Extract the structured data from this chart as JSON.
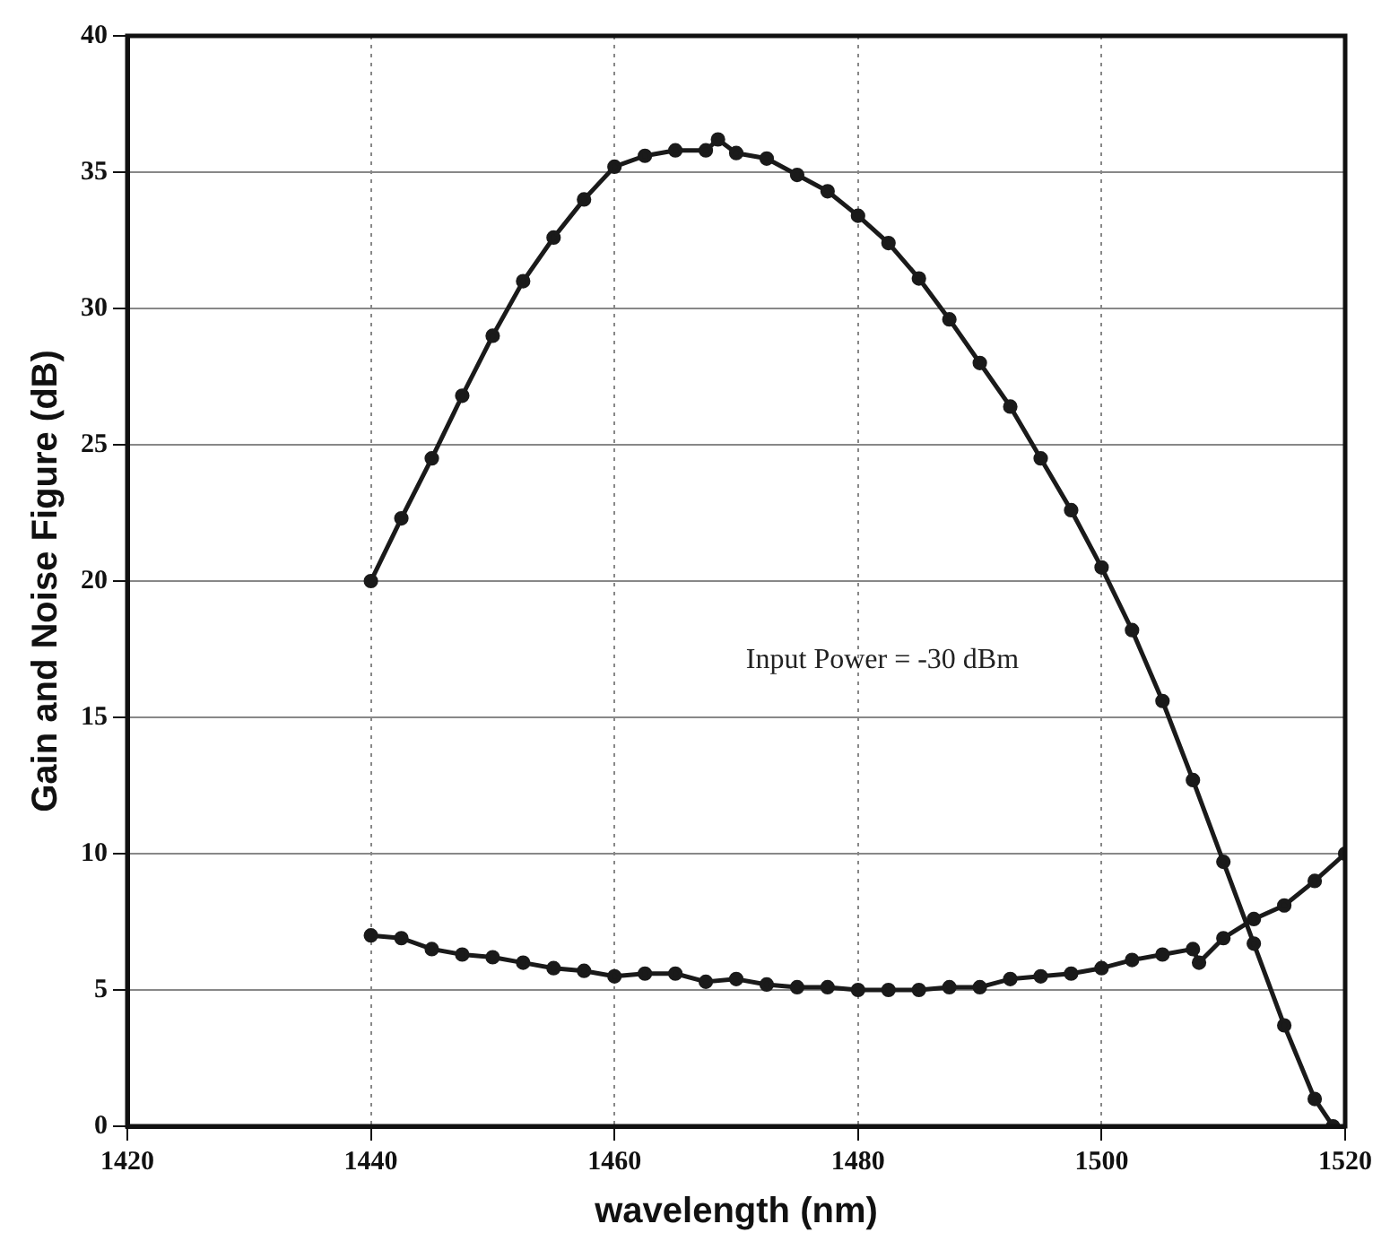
{
  "chart_data": {
    "type": "line",
    "xlabel": "wavelength (nm)",
    "ylabel": "Gain and Noise Figure (dB)",
    "xlim": [
      1420,
      1520
    ],
    "xticks": [
      1420,
      1440,
      1460,
      1480,
      1500,
      1520
    ],
    "ylim": [
      0,
      40
    ],
    "yticks": [
      0,
      5,
      10,
      15,
      20,
      25,
      30,
      35,
      40
    ],
    "grid": true,
    "legend": false,
    "marker": "circle",
    "line_style": "solid",
    "annotations": [
      "Input Power = -30 dBm"
    ],
    "series": [
      {
        "color": "#1a1a1a",
        "x": [
          1440,
          1442.5,
          1445,
          1447.5,
          1450,
          1452.5,
          1455,
          1457.5,
          1460,
          1462.5,
          1465,
          1467.5,
          1468.5,
          1470,
          1472.5,
          1475,
          1477.5,
          1480,
          1482.5,
          1485,
          1487.5,
          1490,
          1492.5,
          1495,
          1497.5,
          1500,
          1502.5,
          1505,
          1507.5,
          1510,
          1512.5,
          1515,
          1517.5,
          1519
        ],
        "values": [
          20,
          22.3,
          24.5,
          26.8,
          29,
          31,
          32.6,
          34,
          35.2,
          35.6,
          35.8,
          35.8,
          36.2,
          35.7,
          35.5,
          34.9,
          34.3,
          33.4,
          32.4,
          31.1,
          29.6,
          28,
          26.4,
          24.5,
          22.6,
          20.5,
          18.2,
          15.6,
          12.7,
          9.7,
          6.7,
          3.7,
          1,
          0
        ]
      },
      {
        "color": "#1a1a1a",
        "x": [
          1440,
          1442.5,
          1445,
          1447.5,
          1450,
          1452.5,
          1455,
          1457.5,
          1460,
          1462.5,
          1465,
          1467.5,
          1470,
          1472.5,
          1475,
          1477.5,
          1480,
          1482.5,
          1485,
          1487.5,
          1490,
          1492.5,
          1495,
          1497.5,
          1500,
          1502.5,
          1505,
          1507.5,
          1508,
          1510,
          1512.5,
          1515,
          1517.5,
          1520
        ],
        "values": [
          7,
          6.9,
          6.5,
          6.3,
          6.2,
          6,
          5.8,
          5.7,
          5.5,
          5.6,
          5.6,
          5.3,
          5.4,
          5.2,
          5.1,
          5.1,
          5,
          5,
          5,
          5.1,
          5.1,
          5.4,
          5.5,
          5.6,
          5.8,
          6.1,
          6.3,
          6.5,
          6,
          6.9,
          7.6,
          8.1,
          9,
          10
        ]
      }
    ]
  }
}
